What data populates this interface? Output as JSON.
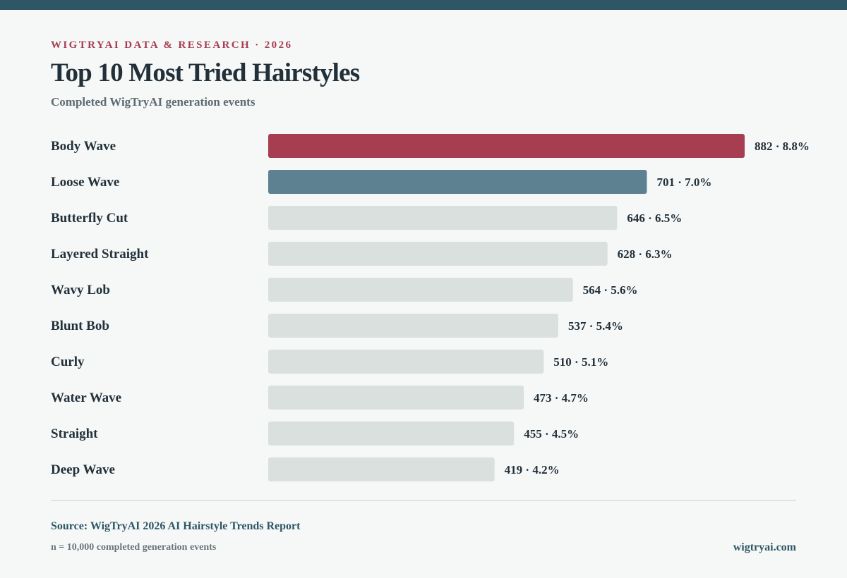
{
  "header": {
    "eyebrow": "WIGTRYAI DATA & RESEARCH · 2026",
    "title": "Top 10 Most Tried Hairstyles",
    "subtitle": "Completed WigTryAI generation events"
  },
  "chart_data": {
    "type": "bar",
    "orientation": "horizontal",
    "categories": [
      "Body Wave",
      "Loose Wave",
      "Butterfly Cut",
      "Layered Straight",
      "Wavy Lob",
      "Blunt Bob",
      "Curly",
      "Water Wave",
      "Straight",
      "Deep Wave"
    ],
    "values": [
      882,
      701,
      646,
      628,
      564,
      537,
      510,
      473,
      455,
      419
    ],
    "shares_percent": [
      8.8,
      7.0,
      6.5,
      6.3,
      5.6,
      5.4,
      5.1,
      4.7,
      4.5,
      4.2
    ],
    "data_labels": [
      "882 · 8.8%",
      "701 · 7.0%",
      "646 · 6.5%",
      "628 · 6.3%",
      "564 · 5.6%",
      "537 · 5.4%",
      "510 · 5.1%",
      "473 · 4.7%",
      "455 · 4.5%",
      "419 · 4.2%"
    ],
    "xlim": [
      0,
      882
    ],
    "grid": false,
    "legend": "none",
    "colors": {
      "first": "#a63d50",
      "second": "#5d8191",
      "rest": "#d9e0de",
      "label": "#22303a"
    }
  },
  "footer": {
    "source": "Source: WigTryAI 2026 AI Hairstyle Trends Report",
    "sample": "n = 10,000 completed generation events",
    "site": "wigtryai.com"
  }
}
